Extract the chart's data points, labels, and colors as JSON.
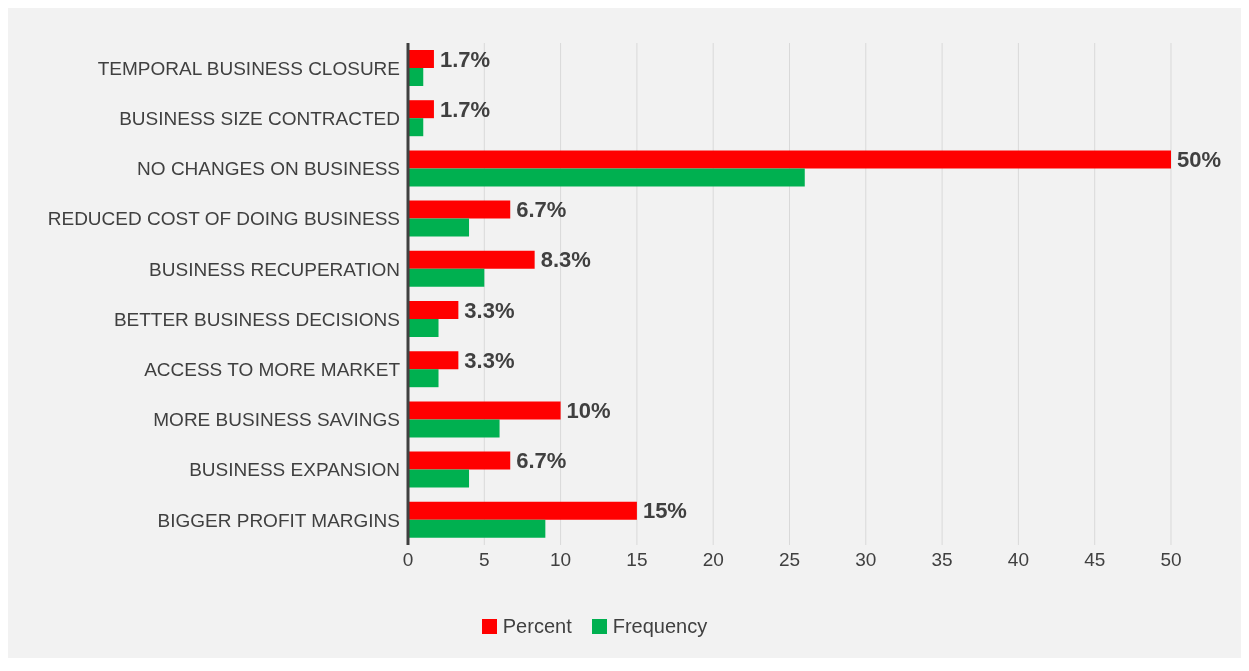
{
  "chart_data": {
    "type": "bar",
    "orientation": "horizontal",
    "categories": [
      "TEMPORAL BUSINESS CLOSURE",
      "BUSINESS SIZE CONTRACTED",
      "NO CHANGES ON BUSINESS",
      "REDUCED COST OF DOING BUSINESS",
      "BUSINESS RECUPERATION",
      "BETTER BUSINESS DECISIONS",
      "ACCESS TO MORE MARKET",
      "MORE BUSINESS SAVINGS",
      "BUSINESS EXPANSION",
      "BIGGER PROFIT MARGINS"
    ],
    "series": [
      {
        "name": "Percent",
        "color": "#ff0000",
        "values": [
          1.7,
          1.7,
          50,
          6.7,
          8.3,
          3.3,
          3.3,
          10,
          6.7,
          15
        ],
        "value_labels": [
          "1.7%",
          "1.7%",
          "50%",
          "6.7%",
          "8.3%",
          "3.3%",
          "3.3%",
          "10%",
          "6.7%",
          "15%"
        ]
      },
      {
        "name": "Frequency",
        "color": "#00b050",
        "values": [
          1,
          1,
          26,
          4,
          5,
          2,
          2,
          6,
          4,
          9
        ]
      }
    ],
    "xlim": [
      0,
      50
    ],
    "xticks": [
      0,
      5,
      10,
      15,
      20,
      25,
      30,
      35,
      40,
      45,
      50
    ],
    "grid": "x",
    "legend": "bottom"
  }
}
